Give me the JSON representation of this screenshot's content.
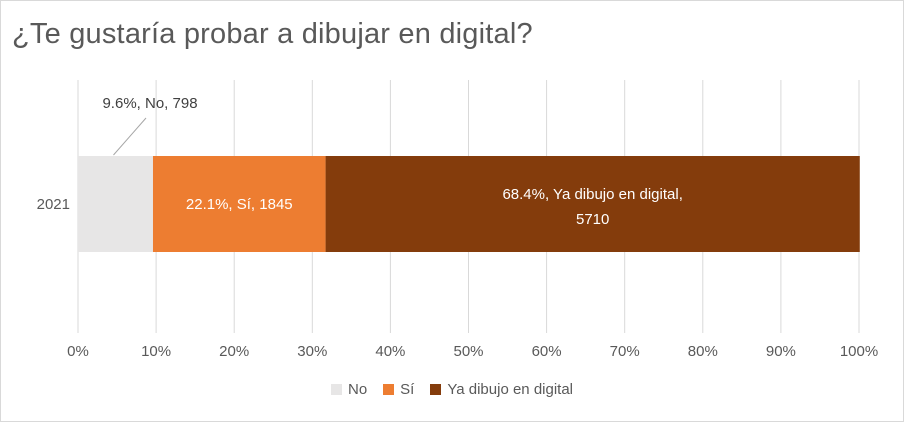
{
  "chart_data": {
    "type": "bar",
    "orientation": "horizontal",
    "stacked": "percent",
    "title": "¿Te gustaría probar a dibujar en digital?",
    "categories": [
      "2021"
    ],
    "series": [
      {
        "name": "No",
        "percent": 9.6,
        "value": 798,
        "label": "9.6%, No, 798",
        "color": "#e7e6e6",
        "label_color": "#404040"
      },
      {
        "name": "Sí",
        "percent": 22.1,
        "value": 1845,
        "label": "22.1%, Sí, 1845",
        "color": "#ed7d31",
        "label_color": "#ffffff"
      },
      {
        "name": "Ya dibujo en digital",
        "percent": 68.4,
        "value": 5710,
        "label_line1": "68.4%, Ya dibujo en digital,",
        "label_line2": "5710",
        "color": "#843c0c",
        "label_color": "#ffffff"
      }
    ],
    "xlim": [
      0,
      100
    ],
    "xticks": [
      "0%",
      "10%",
      "20%",
      "30%",
      "40%",
      "50%",
      "60%",
      "70%",
      "80%",
      "90%",
      "100%"
    ],
    "gridlines": true,
    "legend_position": "bottom"
  },
  "colors": {
    "title": "#595959",
    "grid": "#d9d9d9",
    "leader_line": "#a6a6a6"
  }
}
